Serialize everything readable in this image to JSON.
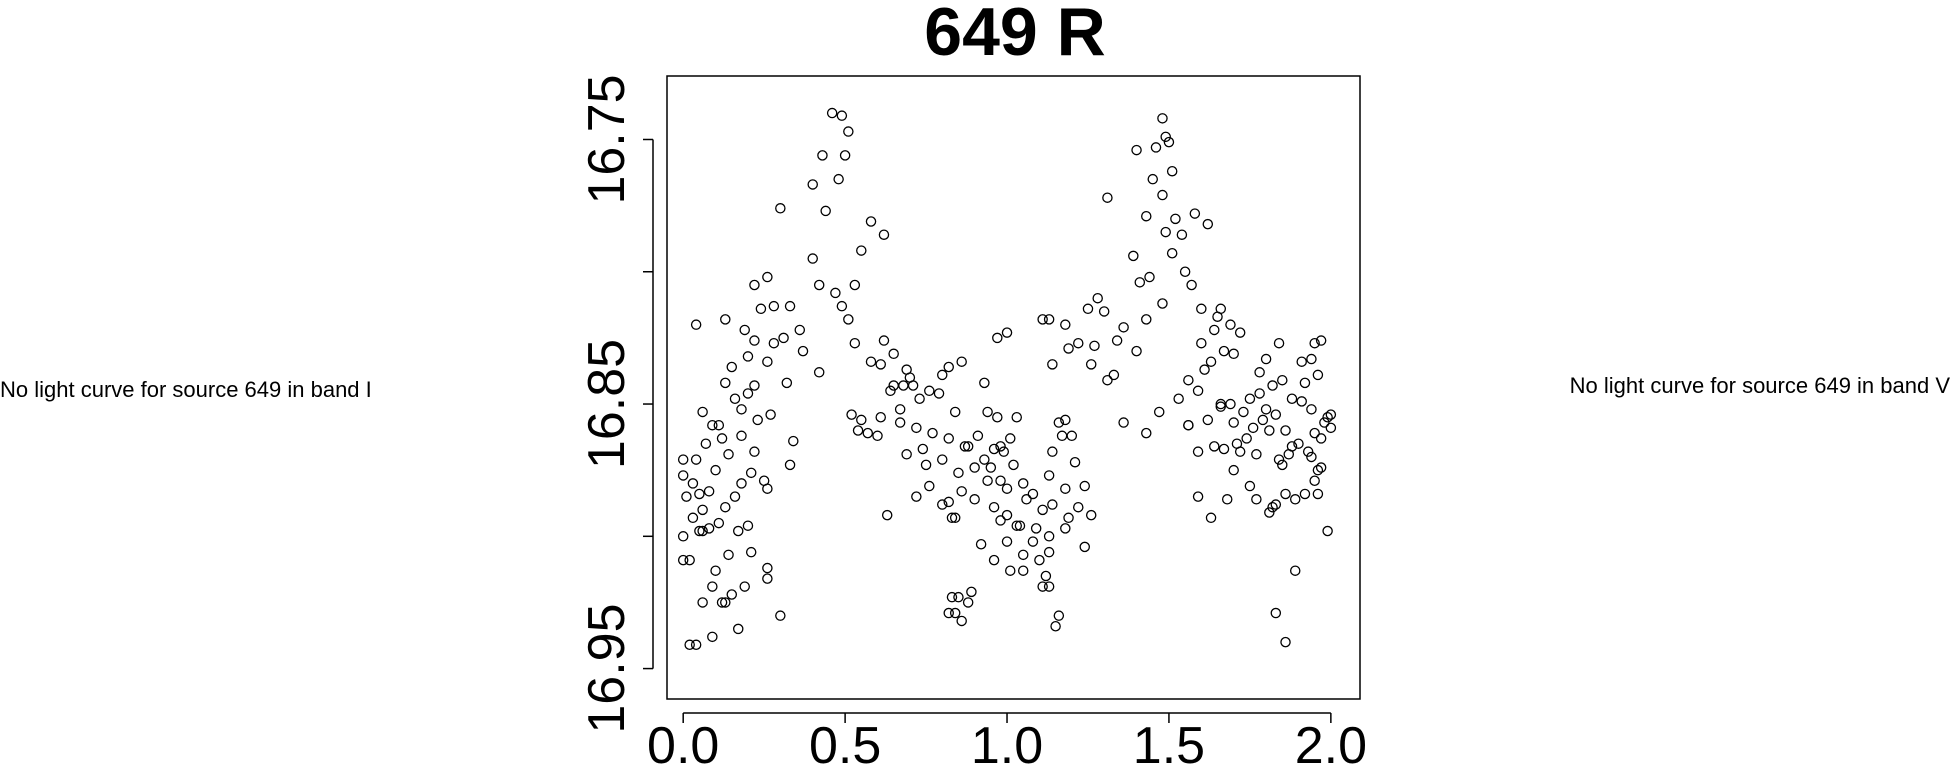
{
  "notes": {
    "left": "No light curve for source 649 in band I",
    "right": "No light curve for source 649 in band V"
  },
  "chart_data": {
    "type": "scatter",
    "title": "649 R",
    "xlabel": "",
    "ylabel": "",
    "xlim": [
      -0.05,
      2.09
    ],
    "ylim": [
      16.9615,
      16.726
    ],
    "y_inverted": true,
    "x_ticks": [
      0.0,
      0.5,
      1.0,
      1.5,
      2.0
    ],
    "x_tick_labels": [
      "0.0",
      "0.5",
      "1.0",
      "1.5",
      "2.0"
    ],
    "y_ticks": [
      16.75,
      16.8,
      16.85,
      16.9,
      16.95
    ],
    "y_tick_labels": [
      "16.75",
      "",
      "16.85",
      "",
      "16.95"
    ],
    "marker": "open-circle",
    "grid": false,
    "legend": "none",
    "points": [
      [
        0.51,
        16.747
      ],
      [
        0.5,
        16.756
      ],
      [
        0.43,
        16.756
      ],
      [
        0.48,
        16.765
      ],
      [
        0.4,
        16.767
      ],
      [
        0.3,
        16.776
      ],
      [
        0.44,
        16.777
      ],
      [
        0.49,
        16.741
      ],
      [
        0.46,
        16.74
      ],
      [
        0.58,
        16.781
      ],
      [
        0.62,
        16.786
      ],
      [
        0.55,
        16.792
      ],
      [
        0.4,
        16.795
      ],
      [
        0.42,
        16.805
      ],
      [
        0.47,
        16.808
      ],
      [
        0.53,
        16.805
      ],
      [
        0.22,
        16.805
      ],
      [
        0.26,
        16.802
      ],
      [
        0.33,
        16.813
      ],
      [
        0.49,
        16.813
      ],
      [
        0.51,
        16.818
      ],
      [
        0.28,
        16.813
      ],
      [
        0.24,
        16.814
      ],
      [
        0.13,
        16.818
      ],
      [
        0.04,
        16.82
      ],
      [
        0.19,
        16.822
      ],
      [
        0.36,
        16.822
      ],
      [
        0.31,
        16.825
      ],
      [
        0.22,
        16.826
      ],
      [
        0.28,
        16.827
      ],
      [
        0.37,
        16.83
      ],
      [
        0.53,
        16.827
      ],
      [
        0.2,
        16.832
      ],
      [
        0.26,
        16.834
      ],
      [
        0.15,
        16.836
      ],
      [
        0.62,
        16.826
      ],
      [
        0.65,
        16.831
      ],
      [
        0.58,
        16.834
      ],
      [
        0.61,
        16.835
      ],
      [
        0.69,
        16.837
      ],
      [
        0.13,
        16.842
      ],
      [
        0.22,
        16.843
      ],
      [
        0.32,
        16.842
      ],
      [
        0.42,
        16.838
      ],
      [
        0.16,
        16.848
      ],
      [
        0.2,
        16.846
      ],
      [
        0.27,
        16.854
      ],
      [
        0.18,
        16.852
      ],
      [
        0.06,
        16.853
      ],
      [
        0.11,
        16.858
      ],
      [
        0.23,
        16.856
      ],
      [
        0.52,
        16.854
      ],
      [
        0.54,
        16.86
      ],
      [
        0.6,
        16.862
      ],
      [
        0.34,
        16.864
      ],
      [
        0.18,
        16.862
      ],
      [
        0.12,
        16.863
      ],
      [
        0.09,
        16.858
      ],
      [
        0.14,
        16.869
      ],
      [
        0.07,
        16.865
      ],
      [
        0.04,
        16.871
      ],
      [
        0.0,
        16.871
      ],
      [
        0.22,
        16.868
      ],
      [
        0.33,
        16.873
      ],
      [
        0.21,
        16.876
      ],
      [
        0.26,
        16.882
      ],
      [
        0.18,
        16.88
      ],
      [
        0.08,
        16.883
      ],
      [
        0.0,
        16.877
      ],
      [
        0.03,
        16.88
      ],
      [
        0.1,
        16.875
      ],
      [
        0.05,
        16.884
      ],
      [
        0.01,
        16.885
      ],
      [
        0.16,
        16.885
      ],
      [
        0.25,
        16.879
      ],
      [
        0.06,
        16.89
      ],
      [
        0.13,
        16.889
      ],
      [
        0.11,
        16.895
      ],
      [
        0.17,
        16.898
      ],
      [
        0.03,
        16.893
      ],
      [
        0.05,
        16.898
      ],
      [
        0.08,
        16.897
      ],
      [
        0.21,
        16.906
      ],
      [
        0.14,
        16.907
      ],
      [
        0.1,
        16.913
      ],
      [
        0.2,
        16.896
      ],
      [
        0.0,
        16.9
      ],
      [
        0.09,
        16.919
      ],
      [
        0.15,
        16.922
      ],
      [
        0.26,
        16.916
      ],
      [
        0.13,
        16.925
      ],
      [
        0.0,
        16.909
      ],
      [
        0.02,
        16.909
      ],
      [
        0.06,
        16.898
      ],
      [
        0.19,
        16.919
      ],
      [
        0.26,
        16.912
      ],
      [
        0.3,
        16.93
      ],
      [
        0.12,
        16.925
      ],
      [
        0.17,
        16.935
      ],
      [
        0.09,
        16.938
      ],
      [
        0.06,
        16.925
      ],
      [
        0.02,
        16.941
      ],
      [
        0.04,
        16.941
      ],
      [
        0.63,
        16.892
      ],
      [
        0.7,
        16.84
      ],
      [
        0.71,
        16.843
      ],
      [
        0.73,
        16.848
      ],
      [
        0.67,
        16.852
      ],
      [
        0.79,
        16.846
      ],
      [
        0.84,
        16.853
      ],
      [
        0.72,
        16.859
      ],
      [
        0.77,
        16.861
      ],
      [
        0.82,
        16.863
      ],
      [
        0.87,
        16.866
      ],
      [
        0.74,
        16.867
      ],
      [
        0.69,
        16.869
      ],
      [
        0.8,
        16.871
      ],
      [
        0.75,
        16.873
      ],
      [
        0.95,
        16.874
      ],
      [
        0.9,
        16.874
      ],
      [
        0.85,
        16.876
      ],
      [
        0.93,
        16.871
      ],
      [
        0.96,
        16.867
      ],
      [
        0.99,
        16.868
      ],
      [
        1.01,
        16.863
      ],
      [
        0.91,
        16.862
      ],
      [
        0.88,
        16.866
      ],
      [
        0.97,
        16.855
      ],
      [
        1.03,
        16.855
      ],
      [
        0.76,
        16.881
      ],
      [
        0.86,
        16.883
      ],
      [
        0.72,
        16.885
      ],
      [
        0.82,
        16.887
      ],
      [
        0.8,
        16.888
      ],
      [
        0.94,
        16.879
      ],
      [
        0.98,
        16.879
      ],
      [
        1.0,
        16.882
      ],
      [
        1.05,
        16.88
      ],
      [
        0.9,
        16.886
      ],
      [
        0.96,
        16.889
      ],
      [
        1.0,
        16.892
      ],
      [
        1.06,
        16.886
      ],
      [
        1.08,
        16.884
      ],
      [
        1.11,
        16.89
      ],
      [
        0.84,
        16.893
      ],
      [
        0.83,
        16.893
      ],
      [
        0.98,
        16.894
      ],
      [
        1.04,
        16.896
      ],
      [
        1.09,
        16.897
      ],
      [
        1.0,
        16.902
      ],
      [
        1.05,
        16.907
      ],
      [
        1.13,
        16.9
      ],
      [
        0.96,
        16.909
      ],
      [
        1.1,
        16.909
      ],
      [
        1.13,
        16.906
      ],
      [
        0.84,
        16.929
      ],
      [
        0.86,
        16.932
      ],
      [
        0.88,
        16.925
      ],
      [
        1.12,
        16.915
      ],
      [
        1.11,
        16.919
      ],
      [
        1.15,
        16.934
      ],
      [
        1.16,
        16.93
      ],
      [
        1.03,
        16.896
      ],
      [
        0.93,
        16.842
      ],
      [
        0.94,
        16.853
      ],
      [
        1.0,
        16.823
      ],
      [
        0.97,
        16.825
      ],
      [
        0.86,
        16.834
      ],
      [
        0.82,
        16.836
      ],
      [
        0.8,
        16.839
      ],
      [
        0.76,
        16.845
      ],
      [
        0.92,
        16.903
      ],
      [
        1.01,
        16.913
      ],
      [
        1.05,
        16.913
      ],
      [
        0.89,
        16.921
      ],
      [
        0.98,
        16.866
      ],
      [
        1.02,
        16.873
      ],
      [
        1.14,
        16.868
      ],
      [
        1.17,
        16.862
      ],
      [
        1.16,
        16.857
      ],
      [
        1.18,
        16.856
      ],
      [
        1.2,
        16.862
      ],
      [
        1.21,
        16.872
      ],
      [
        1.13,
        16.877
      ],
      [
        1.18,
        16.882
      ],
      [
        1.24,
        16.881
      ],
      [
        1.14,
        16.888
      ],
      [
        1.22,
        16.889
      ],
      [
        1.19,
        16.893
      ],
      [
        1.26,
        16.892
      ],
      [
        1.18,
        16.897
      ],
      [
        1.24,
        16.904
      ],
      [
        1.08,
        16.902
      ],
      [
        1.13,
        16.919
      ],
      [
        0.83,
        16.923
      ],
      [
        0.82,
        16.929
      ],
      [
        0.85,
        16.923
      ],
      [
        0.65,
        16.843
      ],
      [
        0.61,
        16.855
      ],
      [
        0.57,
        16.861
      ],
      [
        0.55,
        16.856
      ],
      [
        0.67,
        16.857
      ],
      [
        0.68,
        16.843
      ],
      [
        0.64,
        16.845
      ],
      [
        1.22,
        16.827
      ],
      [
        1.18,
        16.82
      ],
      [
        1.13,
        16.818
      ],
      [
        1.11,
        16.818
      ],
      [
        1.14,
        16.835
      ],
      [
        1.26,
        16.835
      ],
      [
        1.19,
        16.829
      ],
      [
        1.27,
        16.828
      ],
      [
        1.34,
        16.826
      ],
      [
        1.28,
        16.81
      ],
      [
        1.25,
        16.814
      ],
      [
        1.3,
        16.815
      ],
      [
        1.31,
        16.841
      ],
      [
        1.33,
        16.839
      ],
      [
        1.36,
        16.857
      ],
      [
        1.43,
        16.861
      ],
      [
        1.47,
        16.853
      ],
      [
        1.53,
        16.848
      ],
      [
        1.56,
        16.858
      ],
      [
        1.4,
        16.83
      ],
      [
        1.36,
        16.821
      ],
      [
        1.43,
        16.818
      ],
      [
        1.48,
        16.812
      ],
      [
        1.41,
        16.804
      ],
      [
        1.44,
        16.802
      ],
      [
        1.39,
        16.794
      ],
      [
        1.49,
        16.785
      ],
      [
        1.43,
        16.779
      ],
      [
        1.48,
        16.771
      ],
      [
        1.46,
        16.753
      ],
      [
        1.51,
        16.762
      ],
      [
        1.49,
        16.749
      ],
      [
        1.58,
        16.778
      ],
      [
        1.62,
        16.782
      ],
      [
        1.54,
        16.786
      ],
      [
        1.51,
        16.793
      ],
      [
        1.55,
        16.8
      ],
      [
        1.57,
        16.805
      ],
      [
        1.31,
        16.772
      ],
      [
        1.4,
        16.754
      ],
      [
        1.45,
        16.765
      ],
      [
        1.5,
        16.751
      ],
      [
        1.48,
        16.742
      ],
      [
        1.52,
        16.78
      ],
      [
        1.6,
        16.814
      ],
      [
        1.64,
        16.822
      ],
      [
        1.66,
        16.814
      ],
      [
        1.69,
        16.82
      ],
      [
        1.72,
        16.823
      ],
      [
        1.67,
        16.83
      ],
      [
        1.7,
        16.831
      ],
      [
        1.63,
        16.834
      ],
      [
        1.61,
        16.837
      ],
      [
        1.56,
        16.841
      ],
      [
        1.59,
        16.845
      ],
      [
        1.66,
        16.85
      ],
      [
        1.69,
        16.85
      ],
      [
        1.62,
        16.856
      ],
      [
        1.73,
        16.853
      ],
      [
        1.76,
        16.859
      ],
      [
        1.79,
        16.856
      ],
      [
        1.81,
        16.86
      ],
      [
        1.74,
        16.863
      ],
      [
        1.71,
        16.865
      ],
      [
        1.67,
        16.867
      ],
      [
        1.77,
        16.869
      ],
      [
        1.84,
        16.871
      ],
      [
        1.85,
        16.873
      ],
      [
        1.87,
        16.869
      ],
      [
        1.88,
        16.866
      ],
      [
        1.9,
        16.865
      ],
      [
        1.93,
        16.868
      ],
      [
        1.94,
        16.87
      ],
      [
        1.96,
        16.875
      ],
      [
        1.95,
        16.879
      ],
      [
        1.97,
        16.874
      ],
      [
        2.0,
        16.859
      ],
      [
        1.98,
        16.857
      ],
      [
        1.99,
        16.855
      ],
      [
        1.91,
        16.849
      ],
      [
        1.88,
        16.848
      ],
      [
        1.85,
        16.841
      ],
      [
        1.82,
        16.843
      ],
      [
        1.78,
        16.846
      ],
      [
        1.8,
        16.852
      ],
      [
        1.83,
        16.854
      ],
      [
        1.86,
        16.86
      ],
      [
        1.94,
        16.852
      ],
      [
        1.95,
        16.861
      ],
      [
        1.97,
        16.863
      ],
      [
        2.0,
        16.854
      ],
      [
        1.96,
        16.839
      ],
      [
        1.92,
        16.842
      ],
      [
        1.94,
        16.833
      ],
      [
        1.97,
        16.826
      ],
      [
        1.95,
        16.827
      ],
      [
        1.91,
        16.834
      ],
      [
        1.84,
        16.827
      ],
      [
        1.8,
        16.833
      ],
      [
        1.78,
        16.838
      ],
      [
        1.75,
        16.848
      ],
      [
        1.7,
        16.857
      ],
      [
        1.72,
        16.868
      ],
      [
        1.75,
        16.881
      ],
      [
        1.68,
        16.886
      ],
      [
        1.63,
        16.893
      ],
      [
        1.59,
        16.885
      ],
      [
        1.56,
        16.858
      ],
      [
        1.64,
        16.866
      ],
      [
        1.77,
        16.886
      ],
      [
        1.81,
        16.891
      ],
      [
        1.83,
        16.888
      ],
      [
        1.86,
        16.884
      ],
      [
        1.89,
        16.886
      ],
      [
        1.92,
        16.884
      ],
      [
        1.96,
        16.884
      ],
      [
        1.99,
        16.898
      ],
      [
        1.89,
        16.913
      ],
      [
        1.83,
        16.929
      ],
      [
        1.86,
        16.94
      ],
      [
        1.82,
        16.889
      ],
      [
        1.59,
        16.868
      ],
      [
        1.7,
        16.875
      ],
      [
        1.66,
        16.851
      ],
      [
        1.6,
        16.827
      ],
      [
        1.65,
        16.817
      ]
    ]
  }
}
